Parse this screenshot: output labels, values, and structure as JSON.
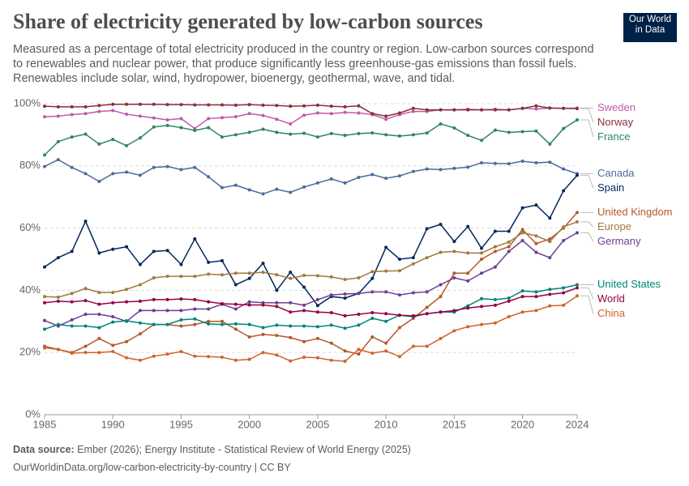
{
  "chart_data": {
    "type": "line",
    "title": "Share of electricity generated by low-carbon sources",
    "subtitle": "Measured as a percentage of total electricity produced in the country or region. Low-carbon sources correspond to renewables and nuclear power, that produce significantly less greenhouse-gas emissions than fossil fuels. Renewables include solar, wind, hydropower, bioenergy, geothermal, wave, and tidal.",
    "logo": [
      "Our World",
      "in Data"
    ],
    "source_label": "Data source:",
    "source": "Ember (2026); Energy Institute - Statistical Review of World Energy (2025)",
    "footer": "OurWorldinData.org/low-carbon-electricity-by-country | CC BY",
    "x": [
      1985,
      1986,
      1987,
      1988,
      1989,
      1990,
      1991,
      1992,
      1993,
      1994,
      1995,
      1996,
      1997,
      1998,
      1999,
      2000,
      2001,
      2002,
      2003,
      2004,
      2005,
      2006,
      2007,
      2008,
      2009,
      2010,
      2011,
      2012,
      2013,
      2014,
      2015,
      2016,
      2017,
      2018,
      2019,
      2020,
      2021,
      2022,
      2023,
      2024
    ],
    "xlim": [
      1985,
      2024
    ],
    "xticks": [
      1985,
      1990,
      1995,
      2000,
      2005,
      2010,
      2015,
      2020,
      2024
    ],
    "ylim": [
      0,
      100
    ],
    "yticks": [
      {
        "value": 0,
        "label": "0%"
      },
      {
        "value": 20,
        "label": "20%"
      },
      {
        "value": 40,
        "label": "40%"
      },
      {
        "value": 60,
        "label": "60%"
      },
      {
        "value": 80,
        "label": "80%"
      },
      {
        "value": 100,
        "label": "100%"
      }
    ],
    "grid": true,
    "series": [
      {
        "name": "Sweden",
        "color": "#c05aa8",
        "values": [
          95.8,
          96,
          96.5,
          96.8,
          97.5,
          97.8,
          96.6,
          96,
          95.4,
          94.8,
          95.2,
          92,
          95.2,
          95.5,
          95.8,
          96.8,
          96.2,
          95,
          93.5,
          96.3,
          97,
          96.8,
          97.2,
          97,
          96.5,
          95,
          96.5,
          97.5,
          97.5,
          98,
          98,
          98.2,
          98,
          98.2,
          98,
          98.5,
          98.3,
          98.6,
          98.5,
          98.6
        ]
      },
      {
        "name": "Norway",
        "color": "#883039",
        "values": [
          99.2,
          99,
          99,
          99,
          99.4,
          99.8,
          99.8,
          99.8,
          99.8,
          99.7,
          99.7,
          99.6,
          99.6,
          99.6,
          99.5,
          99.7,
          99.5,
          99.4,
          99.2,
          99.3,
          99.5,
          99.2,
          99,
          99.3,
          96.8,
          96,
          97,
          98.5,
          98,
          98,
          98,
          98,
          98,
          98,
          98,
          98.5,
          99.3,
          98.6,
          98.5,
          98.4
        ]
      },
      {
        "name": "France",
        "color": "#2c8465",
        "values": [
          83.5,
          87.8,
          89.3,
          90.2,
          87,
          88.5,
          86.5,
          89,
          92.5,
          93,
          92.3,
          91.4,
          92.3,
          89.3,
          90,
          90.8,
          91.8,
          90.8,
          90.2,
          90.5,
          89.3,
          90.4,
          89.8,
          90.4,
          90.6,
          90,
          89.6,
          90,
          90.6,
          93.5,
          92.2,
          89.8,
          88.2,
          91.5,
          90.8,
          91,
          91.2,
          87,
          92,
          94.8
        ]
      },
      {
        "name": "Canada",
        "color": "#4c6a9c",
        "values": [
          79.8,
          82,
          79.5,
          77.5,
          75,
          77.5,
          78,
          77,
          79.5,
          79.8,
          78.8,
          79.5,
          76.5,
          73,
          73.8,
          72.3,
          71,
          72.5,
          71.5,
          73.2,
          74.5,
          75.8,
          74.5,
          76.3,
          77.2,
          76,
          76.8,
          78.2,
          79,
          78.8,
          79.2,
          79.6,
          81,
          80.8,
          80.7,
          81.5,
          81,
          81.2,
          79,
          77.5
        ]
      },
      {
        "name": "Spain",
        "color": "#00295b",
        "values": [
          47.5,
          50.5,
          52.5,
          62.2,
          52,
          53.2,
          54,
          48.3,
          52.5,
          52.8,
          48.3,
          56.5,
          49,
          49.5,
          41.8,
          43.8,
          48.7,
          40,
          45.8,
          41,
          35.1,
          38,
          37.5,
          39,
          43.8,
          53.8,
          50,
          50.5,
          59.8,
          61.2,
          55.7,
          60.5,
          53.5,
          59,
          59,
          66.5,
          67.4,
          63.2,
          72,
          77
        ]
      },
      {
        "name": "United Kingdom",
        "color": "#b4582a",
        "values": [
          22,
          21,
          20,
          22,
          24.5,
          22.3,
          23.5,
          26,
          29,
          29,
          28.5,
          29,
          30,
          30,
          27.5,
          25,
          25.8,
          25.5,
          24.8,
          23.5,
          24.5,
          23,
          20.5,
          19.5,
          25,
          23,
          28,
          31,
          34.5,
          38,
          45.5,
          45.5,
          50,
          52.5,
          54,
          59.5,
          55,
          56.5,
          60,
          65
        ]
      },
      {
        "name": "Europe",
        "color": "#a2793d",
        "values": [
          38,
          37.8,
          39,
          40.6,
          39.3,
          39.3,
          40.3,
          41.8,
          44,
          44.5,
          44.5,
          44.5,
          45.2,
          45,
          45.5,
          45.5,
          45.8,
          45,
          43.8,
          44.8,
          44.7,
          44.3,
          43.5,
          44,
          46,
          46.2,
          46.3,
          48.5,
          50.5,
          52.2,
          52.5,
          52,
          52,
          54,
          55.5,
          58.5,
          57.5,
          55.7,
          60.4,
          62
        ]
      },
      {
        "name": "Germany",
        "color": "#6d3e91",
        "values": [
          30.3,
          28.5,
          30.5,
          32.3,
          32.3,
          31.5,
          30,
          33.5,
          33.5,
          33.5,
          33.5,
          34,
          34,
          35.5,
          34,
          36.3,
          36,
          36,
          36,
          35.2,
          37,
          38.5,
          38.8,
          39,
          39.5,
          39.5,
          38.5,
          39.2,
          39.5,
          41.8,
          44,
          43,
          45.5,
          47.5,
          52.5,
          56,
          52.2,
          50.5,
          56,
          58.5
        ]
      },
      {
        "name": "United States",
        "color": "#00847e",
        "values": [
          27.5,
          29,
          28.5,
          28.5,
          28,
          29.8,
          30.2,
          29.5,
          29,
          29,
          30.5,
          30.8,
          29.2,
          29,
          29.2,
          29,
          28,
          28.8,
          28.5,
          28.5,
          28.3,
          28.8,
          27.8,
          28.8,
          31,
          30,
          32,
          31.5,
          32.5,
          33,
          33,
          35,
          37.3,
          37,
          37.5,
          39.8,
          39.5,
          40.3,
          40.8,
          41.8
        ]
      },
      {
        "name": "World",
        "color": "#970046",
        "values": [
          36,
          36.5,
          36.3,
          36.7,
          35.5,
          36,
          36.3,
          36.5,
          37,
          37,
          37.2,
          37,
          36.3,
          35.7,
          35.5,
          35.3,
          35.3,
          34.8,
          33,
          33.5,
          33,
          32.8,
          31.8,
          32.3,
          32.8,
          32.5,
          32,
          31.8,
          32.5,
          33,
          33.5,
          34.3,
          34.8,
          35.2,
          36.5,
          38,
          38,
          38.7,
          39.2,
          40.8
        ]
      },
      {
        "name": "China",
        "color": "#d0632a",
        "values": [
          21.5,
          21,
          19.8,
          20,
          20,
          20.3,
          18.3,
          17.5,
          18.8,
          19.5,
          20.3,
          18.8,
          18.7,
          18.5,
          17.5,
          17.8,
          20,
          19.2,
          17.3,
          18.5,
          18.3,
          17.5,
          17.2,
          21,
          19.8,
          20.5,
          18.7,
          22,
          22,
          24.5,
          27,
          28.3,
          29,
          29.5,
          31.5,
          33,
          33.5,
          35,
          35.2,
          38.2
        ]
      }
    ]
  }
}
